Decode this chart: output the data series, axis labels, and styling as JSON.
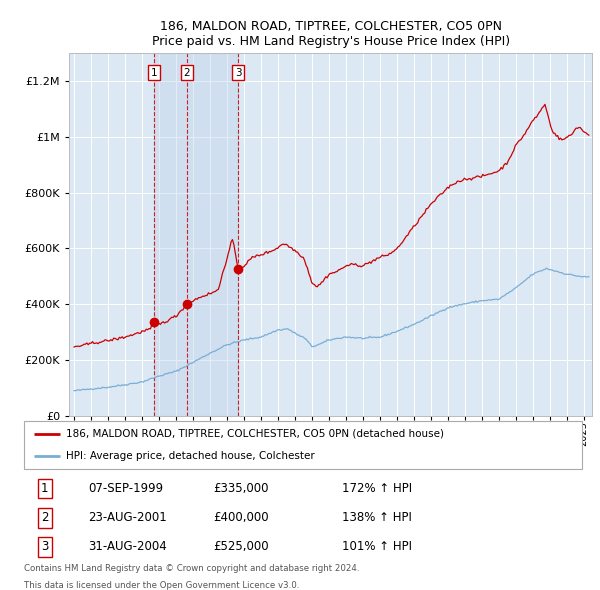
{
  "title": "186, MALDON ROAD, TIPTREE, COLCHESTER, CO5 0PN",
  "subtitle": "Price paid vs. HM Land Registry's House Price Index (HPI)",
  "transactions": [
    {
      "label": "1",
      "date": "07-SEP-1999",
      "price": 335000,
      "pct": "172%",
      "x_year": 1999.69
    },
    {
      "label": "2",
      "date": "23-AUG-2001",
      "price": 400000,
      "pct": "138%",
      "x_year": 2001.64
    },
    {
      "label": "3",
      "date": "31-AUG-2004",
      "price": 525000,
      "pct": "101%",
      "x_year": 2004.66
    }
  ],
  "legend_property": "186, MALDON ROAD, TIPTREE, COLCHESTER, CO5 0PN (detached house)",
  "legend_hpi": "HPI: Average price, detached house, Colchester",
  "footnote1": "Contains HM Land Registry data © Crown copyright and database right 2024.",
  "footnote2": "This data is licensed under the Open Government Licence v3.0.",
  "property_color": "#cc0000",
  "hpi_color": "#7aaed4",
  "bg_color": "#dce9f5",
  "grid_color": "#ffffff",
  "vline_color": "#cc0000",
  "ylim": [
    0,
    1300000
  ],
  "xlim_start": 1994.7,
  "xlim_end": 2025.5,
  "hpi_anchors": [
    [
      1995.0,
      90000
    ],
    [
      1996.0,
      97000
    ],
    [
      1997.0,
      103000
    ],
    [
      1998.0,
      112000
    ],
    [
      1999.0,
      122000
    ],
    [
      2000.0,
      143000
    ],
    [
      2001.0,
      160000
    ],
    [
      2002.0,
      192000
    ],
    [
      2003.0,
      225000
    ],
    [
      2004.0,
      255000
    ],
    [
      2005.0,
      272000
    ],
    [
      2006.0,
      283000
    ],
    [
      2007.0,
      308000
    ],
    [
      2007.6,
      312000
    ],
    [
      2008.0,
      296000
    ],
    [
      2008.6,
      278000
    ],
    [
      2009.0,
      248000
    ],
    [
      2009.5,
      258000
    ],
    [
      2010.0,
      272000
    ],
    [
      2011.0,
      283000
    ],
    [
      2012.0,
      278000
    ],
    [
      2013.0,
      282000
    ],
    [
      2014.0,
      303000
    ],
    [
      2015.0,
      328000
    ],
    [
      2016.0,
      358000
    ],
    [
      2017.0,
      388000
    ],
    [
      2018.0,
      402000
    ],
    [
      2019.0,
      413000
    ],
    [
      2020.0,
      418000
    ],
    [
      2021.0,
      458000
    ],
    [
      2022.0,
      508000
    ],
    [
      2022.8,
      528000
    ],
    [
      2023.0,
      525000
    ],
    [
      2024.0,
      508000
    ],
    [
      2025.0,
      498000
    ]
  ],
  "prop_anchors": [
    [
      1995.0,
      248000
    ],
    [
      1995.5,
      252000
    ],
    [
      1996.0,
      260000
    ],
    [
      1996.5,
      265000
    ],
    [
      1997.0,
      270000
    ],
    [
      1997.5,
      276000
    ],
    [
      1998.0,
      283000
    ],
    [
      1998.5,
      292000
    ],
    [
      1999.0,
      302000
    ],
    [
      1999.5,
      312000
    ],
    [
      1999.69,
      335000
    ],
    [
      2000.0,
      328000
    ],
    [
      2000.5,
      342000
    ],
    [
      2001.0,
      358000
    ],
    [
      2001.64,
      400000
    ],
    [
      2002.0,
      413000
    ],
    [
      2002.5,
      428000
    ],
    [
      2003.0,
      438000
    ],
    [
      2003.5,
      452000
    ],
    [
      2003.8,
      528000
    ],
    [
      2004.0,
      558000
    ],
    [
      2004.3,
      638000
    ],
    [
      2004.5,
      578000
    ],
    [
      2004.66,
      525000
    ],
    [
      2005.0,
      538000
    ],
    [
      2005.5,
      568000
    ],
    [
      2006.0,
      578000
    ],
    [
      2006.5,
      588000
    ],
    [
      2007.0,
      603000
    ],
    [
      2007.3,
      618000
    ],
    [
      2007.5,
      613000
    ],
    [
      2008.0,
      593000
    ],
    [
      2008.5,
      568000
    ],
    [
      2008.8,
      518000
    ],
    [
      2009.0,
      478000
    ],
    [
      2009.3,
      463000
    ],
    [
      2009.5,
      473000
    ],
    [
      2010.0,
      508000
    ],
    [
      2010.5,
      518000
    ],
    [
      2011.0,
      538000
    ],
    [
      2011.5,
      543000
    ],
    [
      2012.0,
      538000
    ],
    [
      2012.5,
      553000
    ],
    [
      2013.0,
      568000
    ],
    [
      2013.5,
      578000
    ],
    [
      2014.0,
      598000
    ],
    [
      2014.5,
      638000
    ],
    [
      2015.0,
      678000
    ],
    [
      2015.5,
      718000
    ],
    [
      2016.0,
      758000
    ],
    [
      2016.5,
      788000
    ],
    [
      2017.0,
      818000
    ],
    [
      2017.5,
      838000
    ],
    [
      2018.0,
      848000
    ],
    [
      2018.5,
      853000
    ],
    [
      2019.0,
      858000
    ],
    [
      2019.5,
      868000
    ],
    [
      2020.0,
      878000
    ],
    [
      2020.5,
      908000
    ],
    [
      2021.0,
      968000
    ],
    [
      2021.5,
      1008000
    ],
    [
      2022.0,
      1058000
    ],
    [
      2022.3,
      1078000
    ],
    [
      2022.5,
      1098000
    ],
    [
      2022.7,
      1118000
    ],
    [
      2022.9,
      1078000
    ],
    [
      2023.0,
      1048000
    ],
    [
      2023.2,
      1018000
    ],
    [
      2023.5,
      998000
    ],
    [
      2023.7,
      988000
    ],
    [
      2024.0,
      998000
    ],
    [
      2024.3,
      1008000
    ],
    [
      2024.5,
      1028000
    ],
    [
      2024.7,
      1038000
    ],
    [
      2025.0,
      1018000
    ],
    [
      2025.3,
      1008000
    ]
  ]
}
